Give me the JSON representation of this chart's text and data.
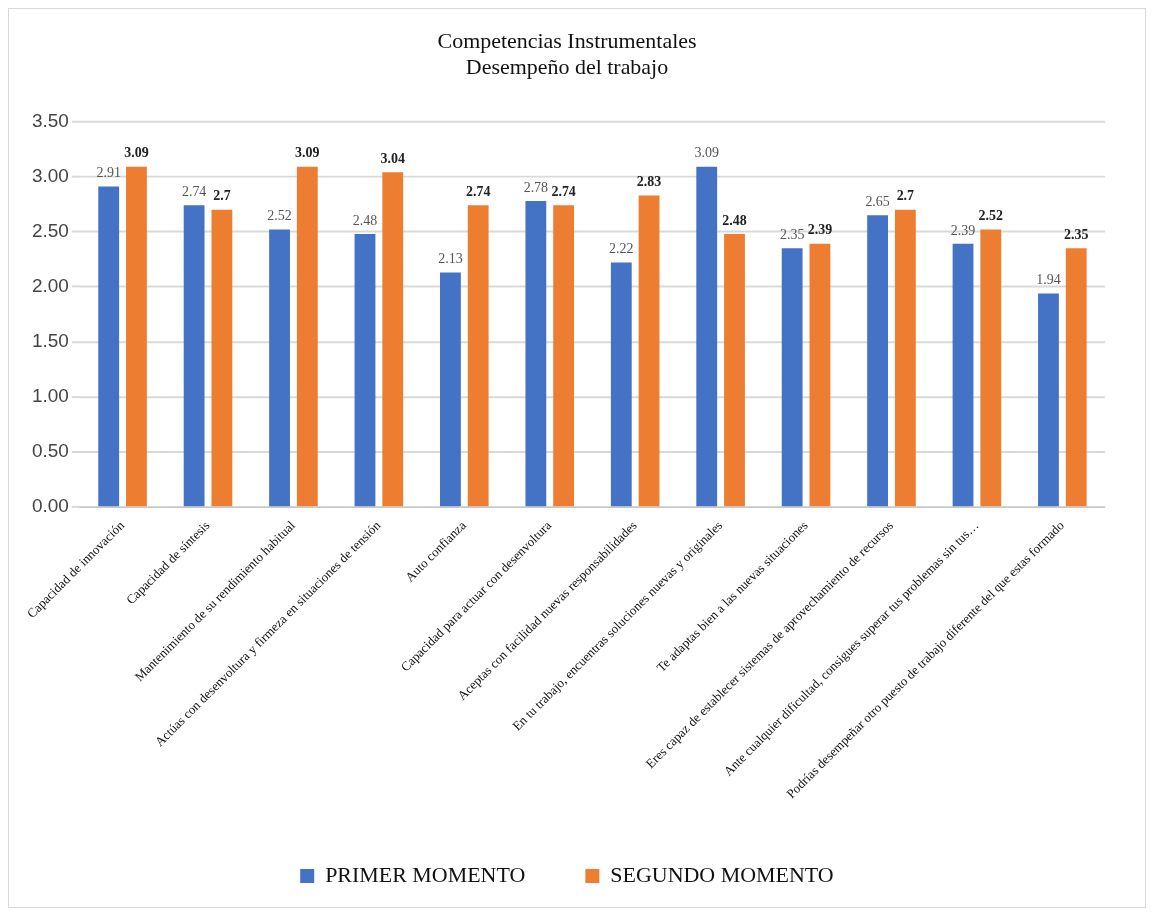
{
  "chart_data": {
    "type": "bar",
    "title": "Competencias Instrumentales",
    "subtitle": "Desempeño del trabajo",
    "categories": [
      "Capacidad de innovación",
      "Capacidad de síntesis",
      "Mantenimiento de su rendimiento habitual",
      "Actúas con desenvoltura y firmeza en situaciones de tensión",
      "Auto confianza",
      "Capacidad para actuar con desenvoltura",
      "Aceptas con facilidad nuevas responsabilidades",
      "En tu trabajo, encuentras soluciones nuevas y originales",
      "Te adaptas bien a las nuevas situaciones",
      "Eres capaz de establecer sistemas de aprovechamiento de recursos",
      "Ante cualquier dificultad, consigues superar tus problemas sin tus…",
      "Podrías desempeñar otro puesto de trabajo diferente del que estas formado"
    ],
    "series": [
      {
        "name": "PRIMER MOMENTO",
        "color": "#4472c4",
        "values": [
          2.91,
          2.74,
          2.52,
          2.48,
          2.13,
          2.78,
          2.22,
          3.09,
          2.35,
          2.65,
          2.39,
          1.94
        ]
      },
      {
        "name": "SEGUNDO MOMENTO",
        "color": "#ed7d31",
        "values": [
          3.09,
          2.7,
          3.09,
          3.04,
          2.74,
          2.74,
          2.83,
          2.48,
          2.39,
          2.7,
          2.52,
          2.35
        ]
      }
    ],
    "ylim": [
      0,
      3.5
    ],
    "yticks": [
      {
        "value": 0,
        "label": "0.00"
      },
      {
        "value": 0.5,
        "label": "0.50"
      },
      {
        "value": 1,
        "label": "1.00"
      },
      {
        "value": 1.5,
        "label": "1.50"
      },
      {
        "value": 2,
        "label": "2.00"
      },
      {
        "value": 2.5,
        "label": "2.50"
      },
      {
        "value": 3,
        "label": "3.00"
      },
      {
        "value": 3.5,
        "label": "3.50"
      }
    ],
    "grid": "y",
    "legend": "bottom",
    "data_labels": true
  }
}
